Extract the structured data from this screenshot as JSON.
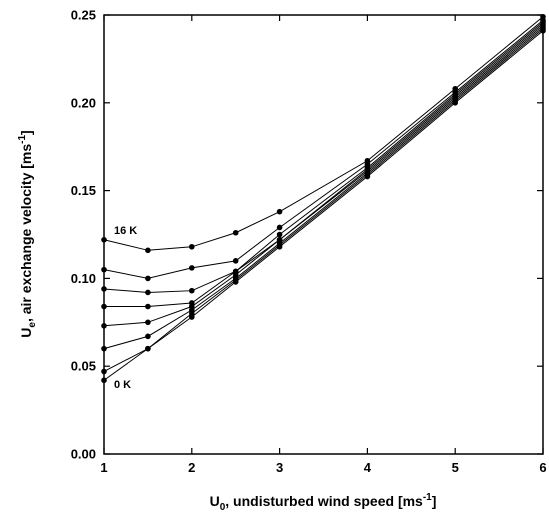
{
  "chart_data": {
    "type": "line",
    "title": "",
    "xlabel": "U0, undisturbed wind speed [ms-1]",
    "xlabel_main": "U",
    "xlabel_sub": "0",
    "xlabel_text": ", undisturbed wind speed [ms",
    "xlabel_sup": "-1",
    "xlabel_end": "]",
    "ylabel": "Ue, air exchange velocity [ms-1]",
    "ylabel_main": "U",
    "ylabel_sub": "e",
    "ylabel_text": ", air exchange velocity [ms",
    "ylabel_sup": "-1",
    "ylabel_end": "]",
    "xlim": [
      1,
      6
    ],
    "ylim": [
      0,
      0.25
    ],
    "xticks": [
      "1",
      "2",
      "3",
      "4",
      "5",
      "6"
    ],
    "yticks": [
      "0.00",
      "0.05",
      "0.10",
      "0.15",
      "0.20",
      "0.25"
    ],
    "grid": false,
    "annotations": [
      {
        "text": "16 K",
        "x": 1.1,
        "y": 0.124
      },
      {
        "text": "0 K",
        "x": 1.1,
        "y": 0.038
      }
    ],
    "series": [
      {
        "x": [
          1,
          1.5,
          2,
          2.5,
          3,
          4,
          5,
          6
        ],
        "y": [
          0.042,
          0.06,
          0.078,
          0.098,
          0.118,
          0.158,
          0.2,
          0.241
        ]
      },
      {
        "x": [
          1,
          1.5,
          2,
          2.5,
          3,
          4,
          5,
          6
        ],
        "y": [
          0.047,
          0.06,
          0.08,
          0.099,
          0.119,
          0.159,
          0.201,
          0.242
        ]
      },
      {
        "x": [
          1,
          1.5,
          2,
          2.5,
          3,
          4,
          5,
          6
        ],
        "y": [
          0.06,
          0.067,
          0.082,
          0.1,
          0.12,
          0.16,
          0.202,
          0.243
        ]
      },
      {
        "x": [
          1,
          1.5,
          2,
          2.5,
          3,
          4,
          5,
          6
        ],
        "y": [
          0.073,
          0.075,
          0.084,
          0.102,
          0.122,
          0.161,
          0.203,
          0.244
        ]
      },
      {
        "x": [
          1,
          1.5,
          2,
          2.5,
          3,
          4,
          5,
          6
        ],
        "y": [
          0.084,
          0.084,
          0.086,
          0.104,
          0.122,
          0.162,
          0.204,
          0.245
        ]
      },
      {
        "x": [
          1,
          1.5,
          2,
          2.5,
          3,
          4,
          5,
          6
        ],
        "y": [
          0.094,
          0.092,
          0.093,
          0.104,
          0.125,
          0.163,
          0.205,
          0.246
        ]
      },
      {
        "x": [
          1,
          1.5,
          2,
          2.5,
          3,
          4,
          5,
          6
        ],
        "y": [
          0.105,
          0.1,
          0.106,
          0.11,
          0.129,
          0.165,
          0.206,
          0.247
        ]
      },
      {
        "x": [
          1,
          1.5,
          2,
          2.5,
          3,
          4,
          5,
          6
        ],
        "y": [
          0.122,
          0.116,
          0.118,
          0.126,
          0.138,
          0.167,
          0.208,
          0.249
        ]
      }
    ]
  }
}
